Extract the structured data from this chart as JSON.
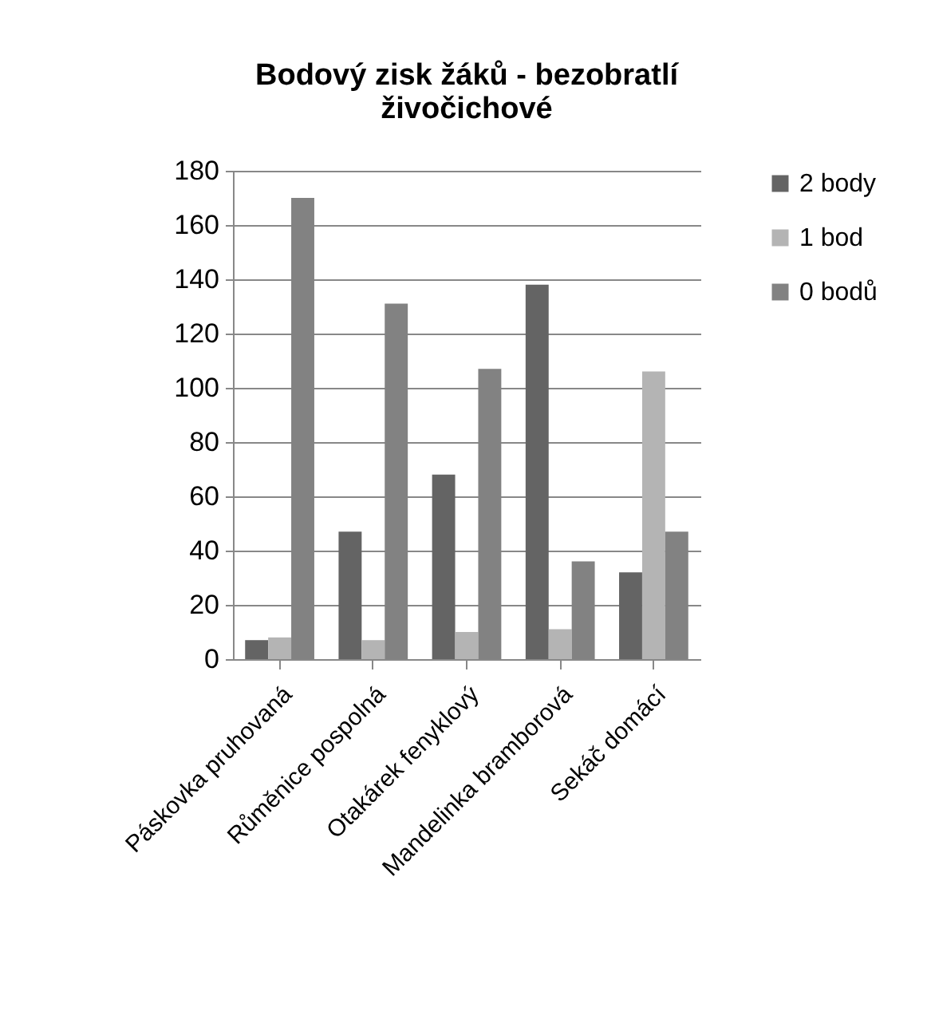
{
  "chart_data": {
    "type": "bar",
    "title": "Bodový zisk žáků - bezobratlí živočichové",
    "categories": [
      "Páskovka pruhovaná",
      "Růměnice pospolná",
      "Otakárek fenyklový",
      "Mandelinka bramborová",
      "Sekáč domácí"
    ],
    "series": [
      {
        "name": "2 body",
        "color": "#646464",
        "values": [
          7,
          47,
          68,
          138,
          32
        ]
      },
      {
        "name": "1 bod",
        "color": "#b4b4b4",
        "values": [
          8,
          7,
          10,
          11,
          106
        ]
      },
      {
        "name": "0 bodů",
        "color": "#828282",
        "values": [
          170,
          131,
          107,
          36,
          47
        ]
      }
    ],
    "ylim": [
      0,
      180
    ],
    "yticks": [
      0,
      20,
      40,
      60,
      80,
      100,
      120,
      140,
      160,
      180
    ],
    "grid": "y",
    "legend": "right"
  }
}
